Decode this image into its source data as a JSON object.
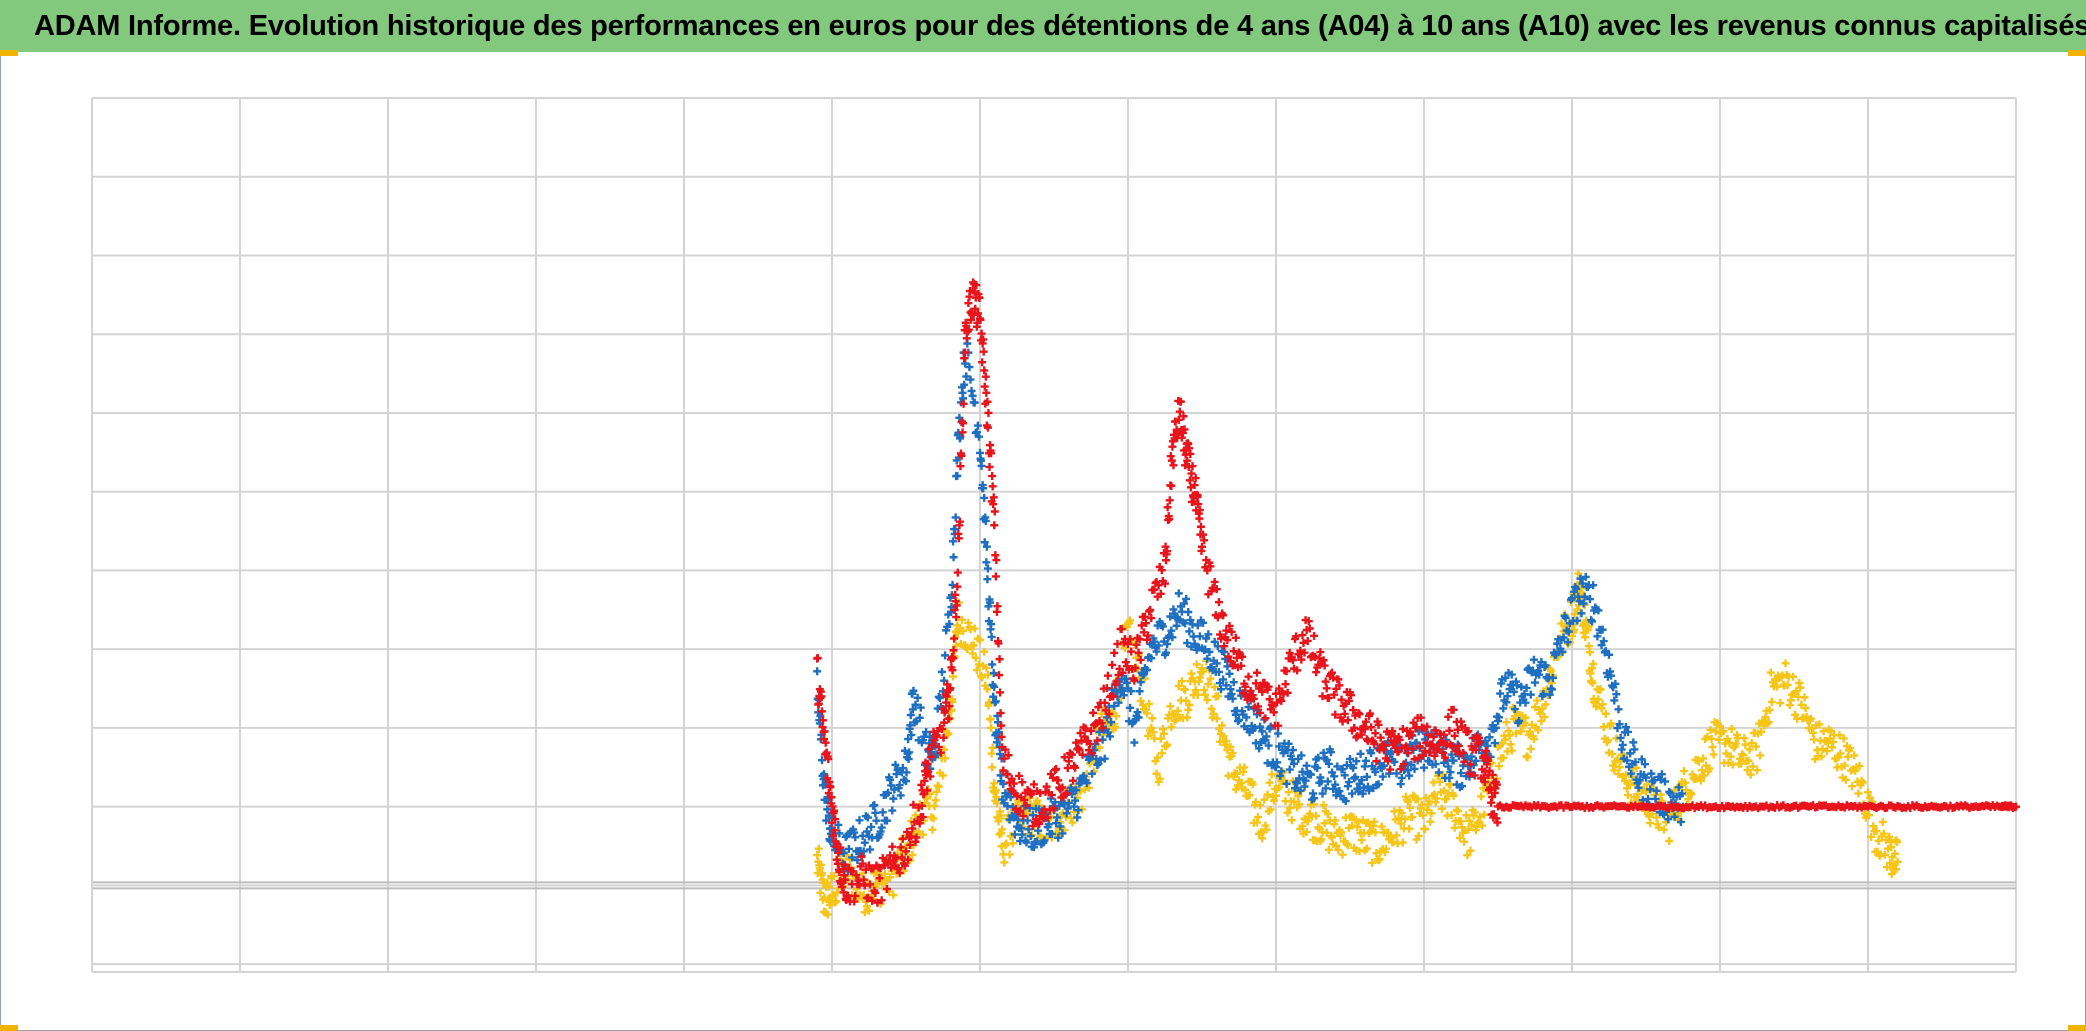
{
  "title": "ADAM Informe. Evolution historique des performances en euros pour des détentions de 4 ans (A04) à 10 ans (A10) avec les revenus connus capitalisés",
  "colors": {
    "title_bar": "#82c87d",
    "grid": "#d4d4d4",
    "baseline": "#bdbdbd",
    "corner_marks": "#f0b400"
  },
  "chart_data": {
    "type": "scatter",
    "marker": "plus",
    "title": "ADAM Informe. Evolution historique des performances en euros pour des détentions de 4 ans (A04) à 10 ans (A10) avec les revenus connus capitalisés",
    "xlabel": "",
    "ylabel": "",
    "xlim": [
      0,
      13
    ],
    "ylim": [
      -1.1,
      10
    ],
    "x_gridlines": 13,
    "y_gridlines": [
      -1,
      0,
      1,
      2,
      3,
      4,
      5,
      6,
      7,
      8,
      9,
      10
    ],
    "grid": true,
    "tick_labels_shown": false,
    "legend": "none",
    "series": [
      {
        "color": "#f5c518",
        "points": [
          [
            4.9,
            0.3
          ],
          [
            4.95,
            -0.2
          ],
          [
            5.0,
            -0.1
          ],
          [
            5.1,
            0.2
          ],
          [
            5.2,
            -0.1
          ],
          [
            5.3,
            0.0
          ],
          [
            5.4,
            0.1
          ],
          [
            5.5,
            0.4
          ],
          [
            5.6,
            0.9
          ],
          [
            5.7,
            1.0
          ],
          [
            5.8,
            2.2
          ],
          [
            5.85,
            3.4
          ],
          [
            5.95,
            3.1
          ],
          [
            6.05,
            2.6
          ],
          [
            6.1,
            1.2
          ],
          [
            6.15,
            0.5
          ],
          [
            6.25,
            0.8
          ],
          [
            6.35,
            0.9
          ],
          [
            6.45,
            0.7
          ],
          [
            6.55,
            0.9
          ],
          [
            6.7,
            1.2
          ],
          [
            6.8,
            1.9
          ],
          [
            6.9,
            2.1
          ],
          [
            7.0,
            3.2
          ],
          [
            7.1,
            2.5
          ],
          [
            7.2,
            1.5
          ],
          [
            7.3,
            2.3
          ],
          [
            7.4,
            2.4
          ],
          [
            7.5,
            2.8
          ],
          [
            7.6,
            2.2
          ],
          [
            7.7,
            1.5
          ],
          [
            7.8,
            1.2
          ],
          [
            7.9,
            0.8
          ],
          [
            8.0,
            1.3
          ],
          [
            8.1,
            1.1
          ],
          [
            8.2,
            0.9
          ],
          [
            8.3,
            0.8
          ],
          [
            8.4,
            0.6
          ],
          [
            8.5,
            0.7
          ],
          [
            8.6,
            0.6
          ],
          [
            8.7,
            0.5
          ],
          [
            8.8,
            0.7
          ],
          [
            8.9,
            0.9
          ],
          [
            9.0,
            0.8
          ],
          [
            9.1,
            1.2
          ],
          [
            9.2,
            1.0
          ],
          [
            9.3,
            0.6
          ],
          [
            9.4,
            1.0
          ],
          [
            9.5,
            1.6
          ],
          [
            9.6,
            2.0
          ],
          [
            9.7,
            1.9
          ],
          [
            9.8,
            2.3
          ],
          [
            9.9,
            3.0
          ],
          [
            10.0,
            3.4
          ],
          [
            10.05,
            3.8
          ],
          [
            10.1,
            3.2
          ],
          [
            10.15,
            2.6
          ],
          [
            10.25,
            1.9
          ],
          [
            10.35,
            1.4
          ],
          [
            10.45,
            1.2
          ],
          [
            10.55,
            1.0
          ],
          [
            10.65,
            0.8
          ],
          [
            10.75,
            1.2
          ],
          [
            10.85,
            1.5
          ],
          [
            10.95,
            1.8
          ],
          [
            11.05,
            1.8
          ],
          [
            11.15,
            1.6
          ],
          [
            11.25,
            1.7
          ],
          [
            11.35,
            2.5
          ],
          [
            11.45,
            2.6
          ],
          [
            11.55,
            2.3
          ],
          [
            11.65,
            1.8
          ],
          [
            11.75,
            1.8
          ],
          [
            11.85,
            1.6
          ],
          [
            11.95,
            1.3
          ],
          [
            12.05,
            0.7
          ],
          [
            12.15,
            0.4
          ],
          [
            12.2,
            0.3
          ]
        ]
      },
      {
        "color": "#1f6fc1",
        "points": [
          [
            4.9,
            2.5
          ],
          [
            4.95,
            1.2
          ],
          [
            5.0,
            0.6
          ],
          [
            5.1,
            0.4
          ],
          [
            5.2,
            0.6
          ],
          [
            5.3,
            0.8
          ],
          [
            5.4,
            1.2
          ],
          [
            5.5,
            1.5
          ],
          [
            5.55,
            2.4
          ],
          [
            5.65,
            1.6
          ],
          [
            5.7,
            1.8
          ],
          [
            5.8,
            3.5
          ],
          [
            5.85,
            5.5
          ],
          [
            5.9,
            6.8
          ],
          [
            6.0,
            5.7
          ],
          [
            6.05,
            4.0
          ],
          [
            6.1,
            2.2
          ],
          [
            6.15,
            1.3
          ],
          [
            6.25,
            0.8
          ],
          [
            6.35,
            0.7
          ],
          [
            6.45,
            0.8
          ],
          [
            6.55,
            0.9
          ],
          [
            6.65,
            1.1
          ],
          [
            6.75,
            1.5
          ],
          [
            6.85,
            1.9
          ],
          [
            6.95,
            2.7
          ],
          [
            7.05,
            2.0
          ],
          [
            7.15,
            3.0
          ],
          [
            7.25,
            3.2
          ],
          [
            7.35,
            3.5
          ],
          [
            7.45,
            3.2
          ],
          [
            7.55,
            3.0
          ],
          [
            7.65,
            2.7
          ],
          [
            7.75,
            2.3
          ],
          [
            7.85,
            2.1
          ],
          [
            7.95,
            1.8
          ],
          [
            8.05,
            1.6
          ],
          [
            8.15,
            1.4
          ],
          [
            8.25,
            1.3
          ],
          [
            8.35,
            1.5
          ],
          [
            8.45,
            1.3
          ],
          [
            8.55,
            1.4
          ],
          [
            8.65,
            1.5
          ],
          [
            8.75,
            1.6
          ],
          [
            8.85,
            1.5
          ],
          [
            8.95,
            1.7
          ],
          [
            9.05,
            1.8
          ],
          [
            9.15,
            1.6
          ],
          [
            9.25,
            1.5
          ],
          [
            9.35,
            1.7
          ],
          [
            9.45,
            1.9
          ],
          [
            9.55,
            2.5
          ],
          [
            9.65,
            2.3
          ],
          [
            9.75,
            2.7
          ],
          [
            9.85,
            2.6
          ],
          [
            9.95,
            3.2
          ],
          [
            10.05,
            3.7
          ],
          [
            10.15,
            3.6
          ],
          [
            10.25,
            2.8
          ],
          [
            10.35,
            1.8
          ],
          [
            10.45,
            1.4
          ],
          [
            10.55,
            1.2
          ],
          [
            10.65,
            1.1
          ],
          [
            10.75,
            1.0
          ]
        ]
      },
      {
        "color": "#e8141c",
        "points": [
          [
            4.9,
            2.7
          ],
          [
            4.95,
            1.8
          ],
          [
            5.0,
            1.0
          ],
          [
            5.05,
            0.3
          ],
          [
            5.1,
            0.0
          ],
          [
            5.2,
            0.1
          ],
          [
            5.3,
            0.0
          ],
          [
            5.4,
            0.2
          ],
          [
            5.5,
            0.5
          ],
          [
            5.6,
            1.0
          ],
          [
            5.65,
            1.5
          ],
          [
            5.75,
            2.0
          ],
          [
            5.8,
            2.5
          ],
          [
            5.85,
            4.0
          ],
          [
            5.9,
            7.0
          ],
          [
            5.95,
            7.5
          ],
          [
            6.0,
            7.2
          ],
          [
            6.05,
            6.0
          ],
          [
            6.1,
            4.5
          ],
          [
            6.15,
            1.6
          ],
          [
            6.25,
            1.2
          ],
          [
            6.35,
            1.0
          ],
          [
            6.45,
            1.1
          ],
          [
            6.55,
            1.3
          ],
          [
            6.65,
            1.6
          ],
          [
            6.75,
            1.9
          ],
          [
            6.85,
            2.3
          ],
          [
            6.95,
            3.0
          ],
          [
            7.05,
            2.8
          ],
          [
            7.15,
            3.5
          ],
          [
            7.25,
            4.0
          ],
          [
            7.3,
            5.5
          ],
          [
            7.35,
            6.0
          ],
          [
            7.4,
            5.4
          ],
          [
            7.45,
            5.0
          ],
          [
            7.5,
            4.3
          ],
          [
            7.6,
            3.5
          ],
          [
            7.7,
            3.0
          ],
          [
            7.8,
            2.6
          ],
          [
            7.9,
            2.4
          ],
          [
            8.0,
            2.2
          ],
          [
            8.1,
            2.8
          ],
          [
            8.2,
            3.2
          ],
          [
            8.3,
            2.7
          ],
          [
            8.4,
            2.4
          ],
          [
            8.5,
            2.2
          ],
          [
            8.6,
            2.0
          ],
          [
            8.7,
            1.8
          ],
          [
            8.8,
            1.7
          ],
          [
            8.9,
            1.8
          ],
          [
            9.0,
            1.9
          ],
          [
            9.1,
            1.8
          ],
          [
            9.2,
            2.0
          ],
          [
            9.3,
            1.7
          ],
          [
            9.4,
            1.6
          ],
          [
            9.45,
            1.2
          ],
          [
            9.5,
            1.0
          ],
          [
            9.7,
            1.0
          ],
          [
            9.9,
            1.0
          ],
          [
            10.1,
            1.0
          ],
          [
            10.3,
            1.0
          ],
          [
            10.5,
            1.0
          ],
          [
            10.7,
            1.0
          ],
          [
            10.9,
            1.0
          ],
          [
            11.1,
            1.0
          ],
          [
            11.3,
            1.0
          ],
          [
            11.5,
            1.0
          ],
          [
            11.7,
            1.0
          ],
          [
            11.9,
            1.0
          ],
          [
            12.1,
            1.0
          ],
          [
            12.3,
            1.0
          ],
          [
            12.5,
            1.0
          ],
          [
            12.7,
            1.0
          ],
          [
            12.9,
            1.0
          ],
          [
            13.0,
            1.0
          ]
        ]
      }
    ]
  }
}
